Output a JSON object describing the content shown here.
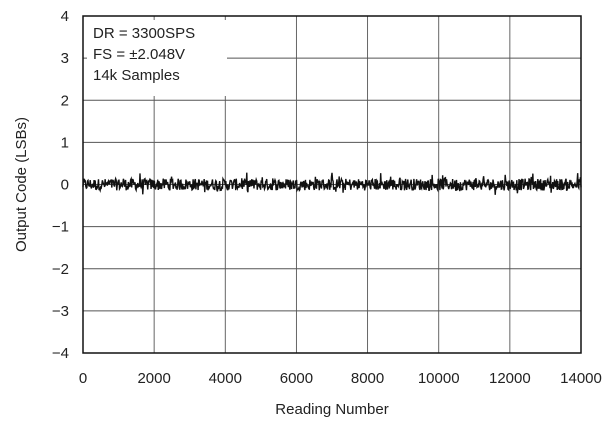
{
  "chart_data": {
    "type": "line",
    "xlabel": "Reading Number",
    "ylabel": "Output Code (LSBs)",
    "xlim": [
      0,
      14000
    ],
    "ylim": [
      -4,
      4
    ],
    "xticks": [
      0,
      2000,
      4000,
      6000,
      8000,
      10000,
      12000,
      14000
    ],
    "xtick_labels": [
      "0",
      "2000",
      "4000",
      "6000",
      "8000",
      "10000",
      "12000",
      "14000"
    ],
    "yticks": [
      4,
      3,
      2,
      1,
      0,
      -1,
      -2,
      -3,
      -4
    ],
    "ytick_labels": [
      "4",
      "3",
      "2",
      "1",
      "0",
      "−1",
      "−2",
      "−3",
      "−4"
    ],
    "grid": true,
    "annotations": [
      "DR = 3300SPS",
      "FS = ±2.048V",
      "14k Samples"
    ],
    "series": [
      {
        "color": "#111111",
        "x_start": 0,
        "x_end": 14000,
        "y_min": -0.25,
        "y_max": 0.3,
        "description_values": "noise about 0 LSB, peak amplitude about ±0.3 LSB"
      }
    ]
  }
}
